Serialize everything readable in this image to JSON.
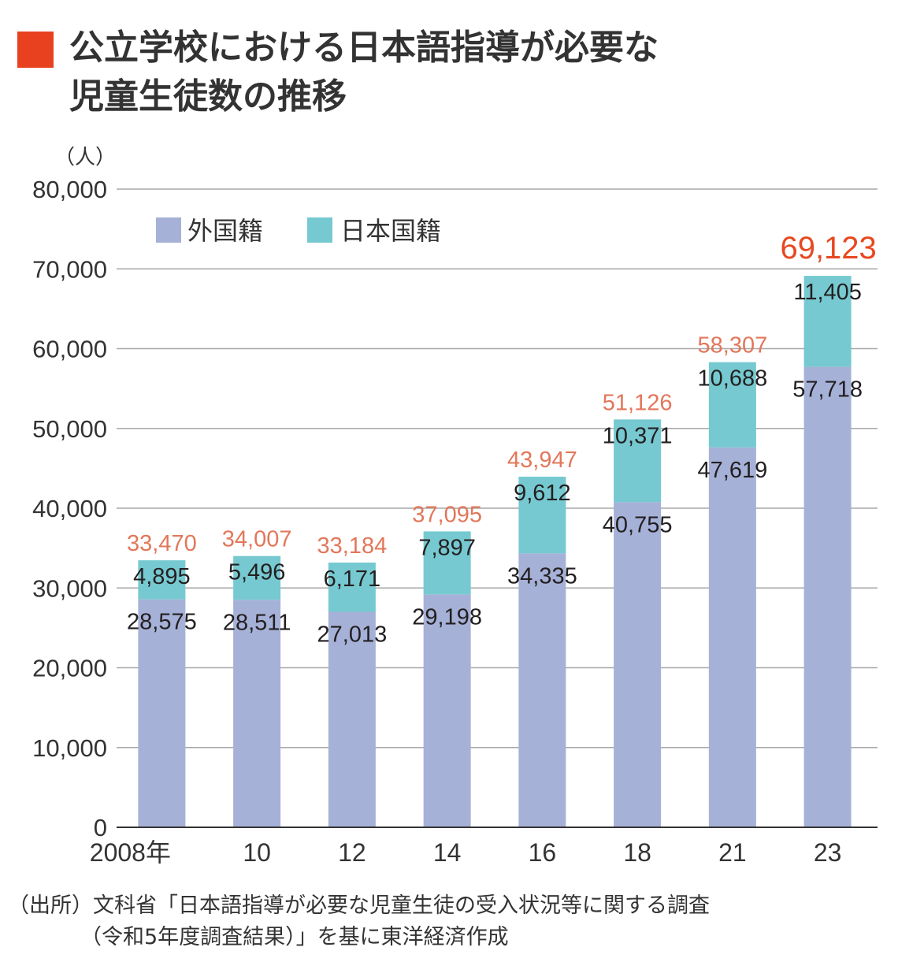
{
  "title": {
    "line1": "公立学校における日本語指導が必要な",
    "line2": "児童生徒数の推移"
  },
  "source": {
    "line1": "（出所）文科省「日本語指導が必要な児童生徒の受入状況等に関する調査",
    "line2": "（令和5年度調査結果）」を基に東洋経済作成"
  },
  "colors": {
    "title_mark": "#e8411f",
    "foreign": "#a6b1d8",
    "japanese": "#76c9d0",
    "total_label": "#e2775a",
    "latest_total_label": "#e8481f"
  },
  "chart_data": {
    "type": "bar",
    "stacked": true,
    "title": "公立学校における日本語指導が必要な児童生徒数の推移",
    "ylabel": "（人）",
    "ylim": [
      0,
      80000
    ],
    "yticks": [
      "0",
      "10,000",
      "20,000",
      "30,000",
      "40,000",
      "50,000",
      "60,000",
      "70,000",
      "80,000"
    ],
    "categories": [
      "2008年",
      "10",
      "12",
      "14",
      "16",
      "18",
      "21",
      "23"
    ],
    "grid": true,
    "legend": "top-left",
    "series": [
      {
        "name": "外国籍",
        "values": [
          28575,
          28511,
          27013,
          29198,
          34335,
          40755,
          47619,
          57718
        ],
        "labels": [
          "28,575",
          "28,511",
          "27,013",
          "29,198",
          "34,335",
          "40,755",
          "47,619",
          "57,718"
        ]
      },
      {
        "name": "日本国籍",
        "values": [
          4895,
          5496,
          6171,
          7897,
          9612,
          10371,
          10688,
          11405
        ],
        "labels": [
          "4,895",
          "5,496",
          "6,171",
          "7,897",
          "9,612",
          "10,371",
          "10,688",
          "11,405"
        ]
      }
    ],
    "totals": [
      33470,
      34007,
      33184,
      37095,
      43947,
      51126,
      58307,
      69123
    ],
    "total_labels": [
      "33,470",
      "34,007",
      "33,184",
      "37,095",
      "43,947",
      "51,126",
      "58,307",
      "69,123"
    ]
  }
}
